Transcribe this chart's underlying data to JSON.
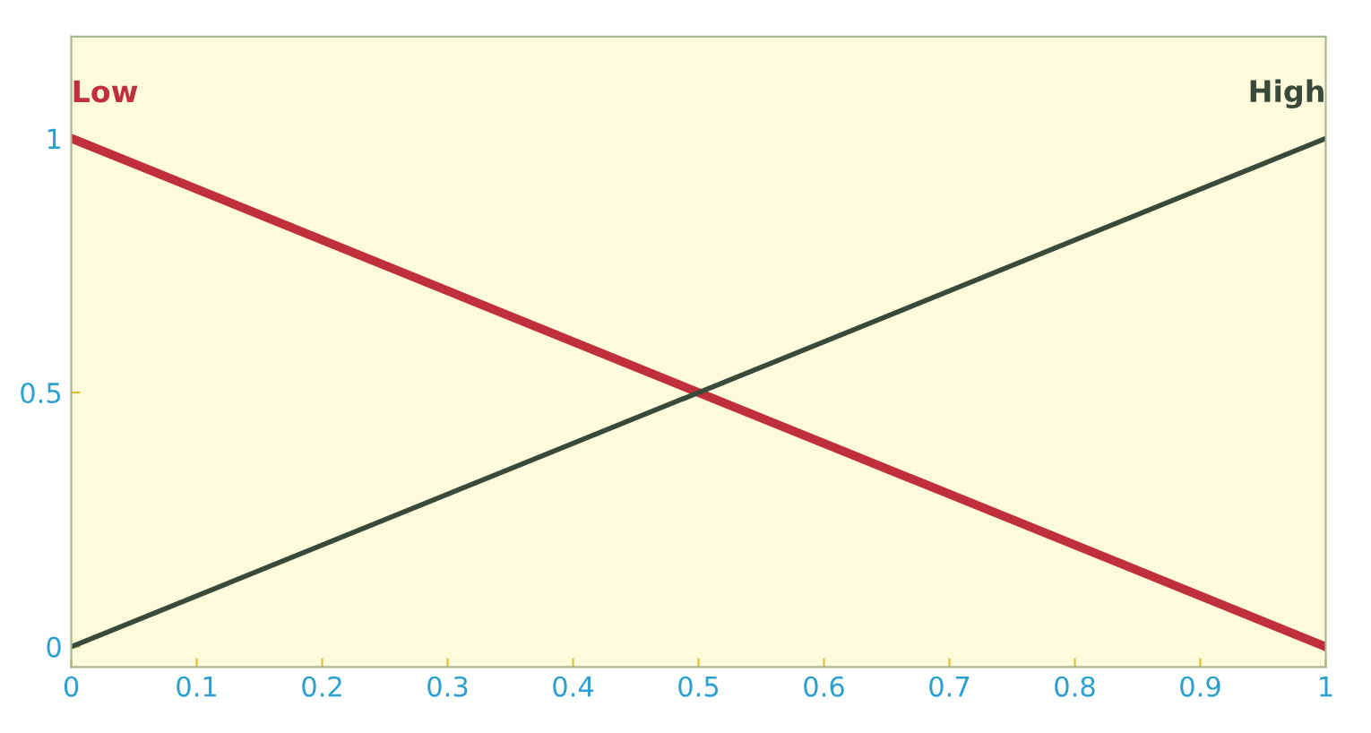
{
  "chart_data": {
    "type": "line",
    "x": [
      0,
      1
    ],
    "xlim": [
      0,
      1
    ],
    "ylim": [
      -0.04,
      1.2
    ],
    "xticks": [
      0,
      0.1,
      0.2,
      0.3,
      0.4,
      0.5,
      0.6,
      0.7,
      0.8,
      0.9,
      1
    ],
    "yticks": [
      0,
      0.5,
      1
    ],
    "series": [
      {
        "name": "Low",
        "color": "#c0303a",
        "values": [
          1,
          0
        ]
      },
      {
        "name": "High",
        "color": "#3a4a3a",
        "values": [
          0,
          1
        ]
      }
    ],
    "grid": false,
    "legend": false,
    "marker": "none",
    "line_style": "solid"
  }
}
